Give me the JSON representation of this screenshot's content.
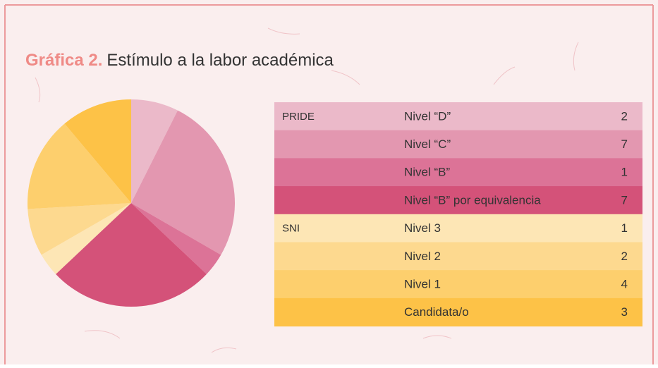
{
  "chart_data": {
    "type": "pie",
    "title_label": "Gráfica 2.",
    "title": "Estímulo a la labor académica",
    "groups": [
      "PRIDE",
      null,
      null,
      null,
      "SNI",
      null,
      null,
      null
    ],
    "categories": [
      "Nivel “D”",
      "Nivel “C”",
      "Nivel “B”",
      "Nivel “B” por equivalencia",
      "Nivel 3",
      "Nivel 2",
      "Nivel 1",
      "Candidata/o"
    ],
    "values": [
      2,
      7,
      1,
      7,
      1,
      2,
      4,
      3
    ],
    "colors": [
      "#ebb9c9",
      "#e397b0",
      "#dc7397",
      "#d45279",
      "#fde6b5",
      "#fdd98f",
      "#fdcf6d",
      "#fdc247"
    ]
  }
}
